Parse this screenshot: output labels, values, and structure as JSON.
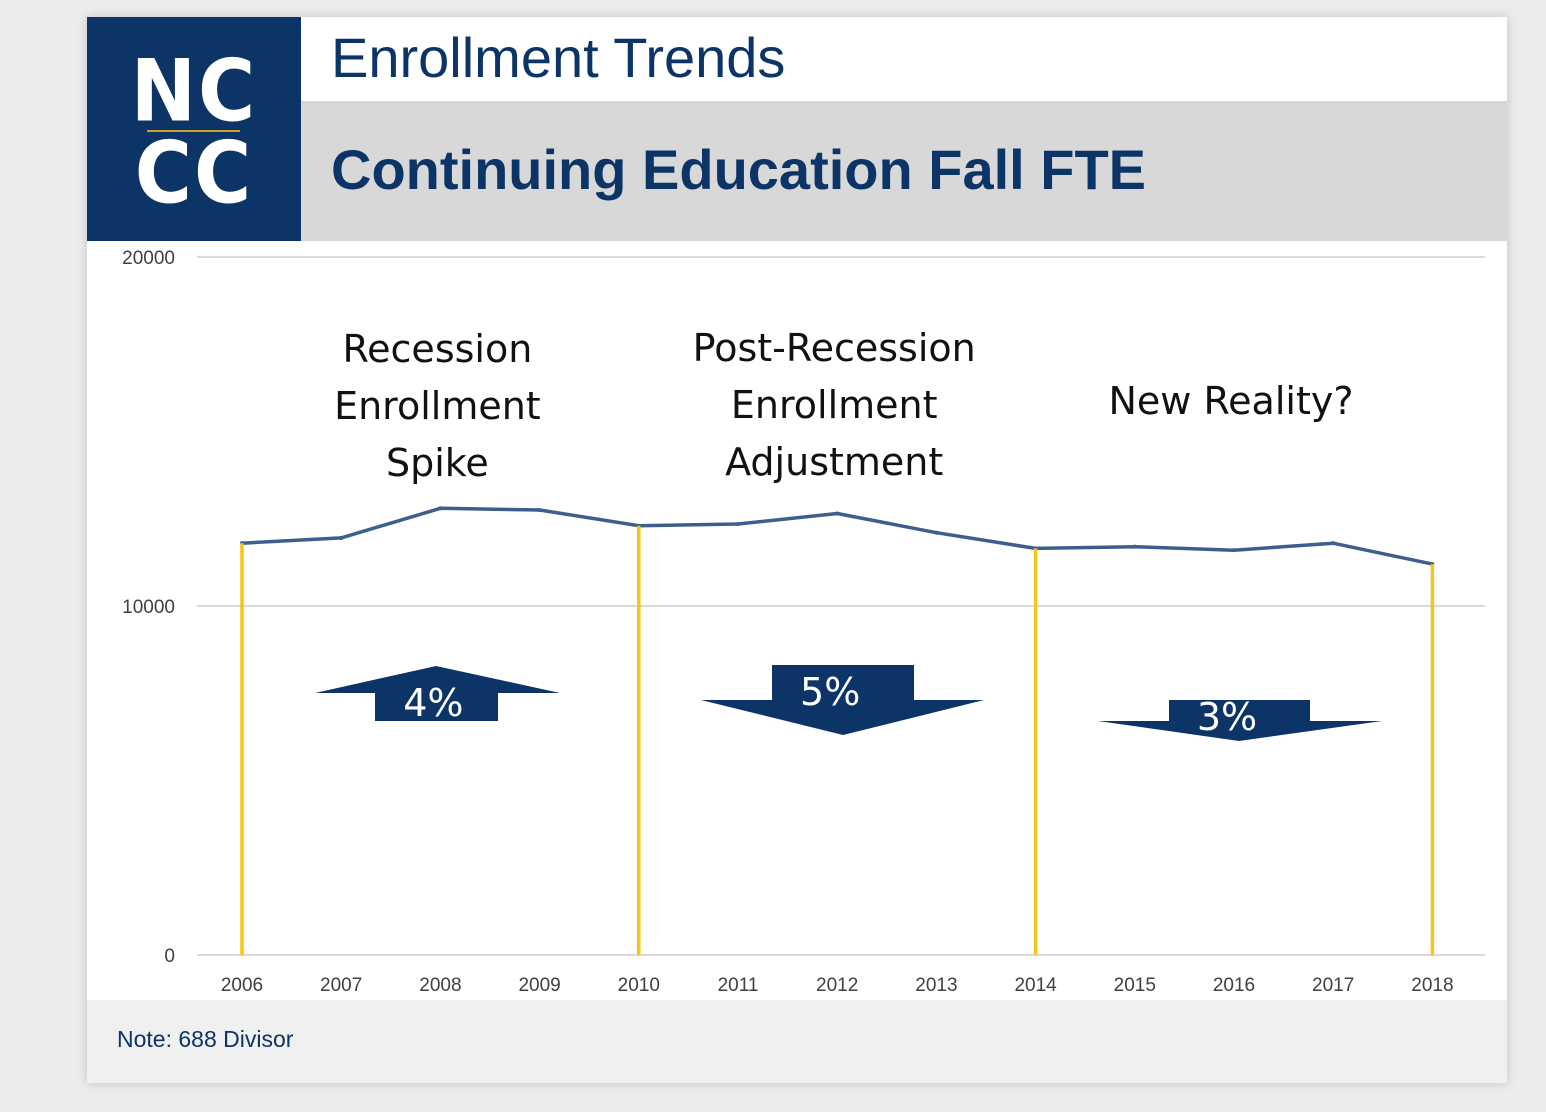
{
  "logo": {
    "line1": "NC",
    "line2": "CC"
  },
  "header": {
    "title": "Enrollment Trends",
    "subtitle": "Continuing Education Fall FTE"
  },
  "note": "Note: 688 Divisor",
  "colors": {
    "navy": "#0d3466",
    "line": "#3c5f8d",
    "divider": "#f5c518",
    "grid": "#d9d9d9"
  },
  "annotations": [
    {
      "id": "recession",
      "lines": [
        "Recession",
        "Enrollment",
        "Spike"
      ],
      "center_year": 2008
    },
    {
      "id": "post-recession",
      "lines": [
        "Post-Recession",
        "Enrollment",
        "Adjustment"
      ],
      "center_year": 2012
    },
    {
      "id": "new-reality",
      "lines": [
        "New Reality?"
      ],
      "center_year": 2016
    }
  ],
  "arrows": [
    {
      "id": "recession-arrow",
      "direction": "up",
      "label": "4%",
      "center_year": 2008
    },
    {
      "id": "post-recession-arrow",
      "direction": "down",
      "label": "5%",
      "center_year": 2012
    },
    {
      "id": "new-reality-arrow",
      "direction": "down",
      "label": "3%",
      "center_year": 2016
    }
  ],
  "chart_data": {
    "type": "line",
    "title": "Continuing Education Fall FTE",
    "xlabel": "",
    "ylabel": "",
    "x": [
      2006,
      2007,
      2008,
      2009,
      2010,
      2011,
      2012,
      2013,
      2014,
      2015,
      2016,
      2017,
      2018
    ],
    "series": [
      {
        "name": "Fall FTE",
        "values": [
          11800,
          11950,
          12800,
          12750,
          12300,
          12350,
          12650,
          12100,
          11650,
          11700,
          11600,
          11800,
          11200
        ]
      }
    ],
    "ylim": [
      0,
      20000
    ],
    "yticks": [
      0,
      10000,
      20000
    ],
    "grid": true,
    "dividers": [
      2006,
      2010,
      2014,
      2018
    ]
  }
}
